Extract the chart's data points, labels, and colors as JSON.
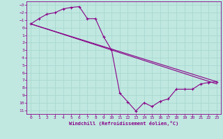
{
  "xlabel": "Windchill (Refroidissement éolien,°C)",
  "bg_color": "#c0e8e0",
  "grid_color": "#a8d8d0",
  "line_color": "#880088",
  "curve_x": [
    0,
    1,
    2,
    3,
    4,
    5,
    6,
    7,
    8,
    9,
    10,
    11,
    12,
    13,
    14,
    15,
    16,
    17,
    18,
    19,
    20,
    21,
    22,
    23
  ],
  "curve_y": [
    -0.5,
    -1.2,
    -1.8,
    -2.0,
    -2.5,
    -2.7,
    -2.8,
    -1.2,
    -1.2,
    1.2,
    3.0,
    8.7,
    9.9,
    11.1,
    10.0,
    10.5,
    9.8,
    9.5,
    8.2,
    8.2,
    8.2,
    7.5,
    7.3,
    7.2
  ],
  "straight_line1_x": [
    0,
    23
  ],
  "straight_line1_y": [
    -0.5,
    7.5
  ],
  "straight_line2_x": [
    0,
    23
  ],
  "straight_line2_y": [
    -0.5,
    7.2
  ],
  "ylim": [
    11.5,
    -3.5
  ],
  "xlim": [
    -0.5,
    23.5
  ],
  "yticks": [
    11,
    10,
    9,
    8,
    7,
    6,
    5,
    4,
    3,
    2,
    1,
    0,
    -1,
    -2,
    -3
  ],
  "xticks": [
    0,
    1,
    2,
    3,
    4,
    5,
    6,
    7,
    8,
    9,
    10,
    11,
    12,
    13,
    14,
    15,
    16,
    17,
    18,
    19,
    20,
    21,
    22,
    23
  ]
}
